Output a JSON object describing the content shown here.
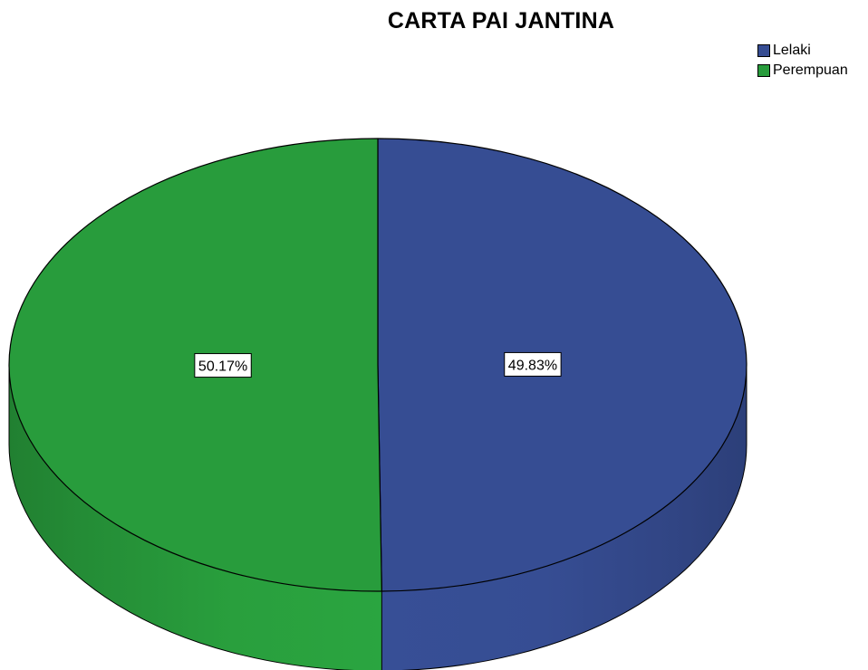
{
  "chart_data": {
    "type": "pie",
    "title": "CARTA PAI JANTINA",
    "slices": [
      {
        "name": "Lelaki",
        "value": 49.83,
        "label": "49.83%",
        "color": "#364D93"
      },
      {
        "name": "Perempuan",
        "value": 50.17,
        "label": "50.17%",
        "color": "#289C3C"
      }
    ],
    "legend_position": "top-right",
    "style": "3d"
  }
}
